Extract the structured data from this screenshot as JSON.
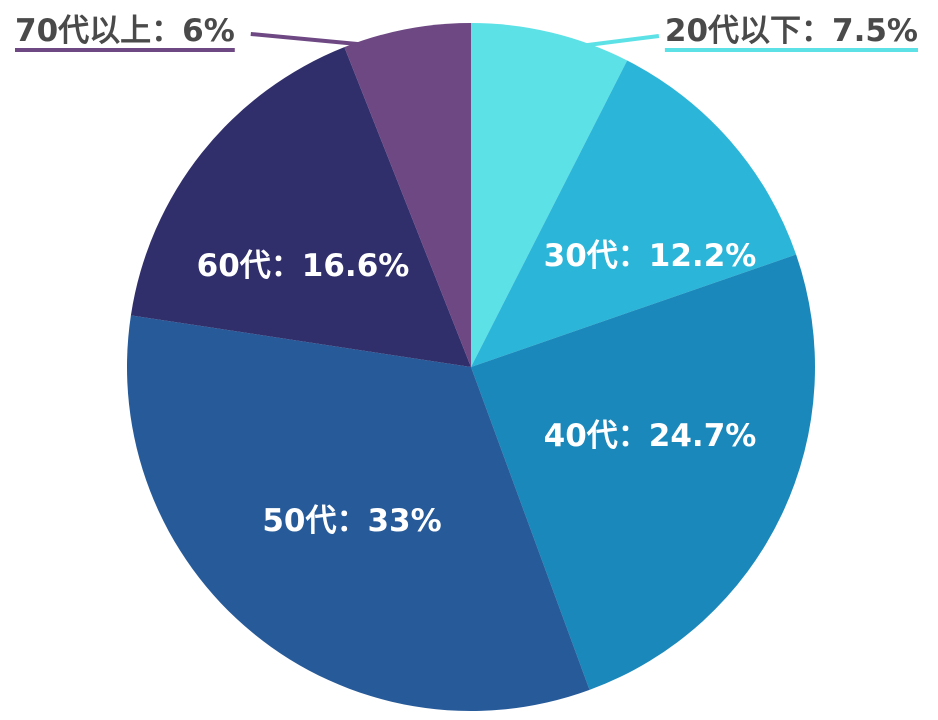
{
  "chart_data": {
    "type": "pie",
    "categories": [
      "20代以下",
      "30代",
      "40代",
      "50代",
      "60代",
      "70代以上"
    ],
    "separator": "：",
    "values": [
      7.5,
      12.2,
      24.7,
      33,
      16.6,
      6
    ],
    "value_labels": [
      "7.5%",
      "12.2%",
      "24.7%",
      "33%",
      "16.6%",
      "6%"
    ],
    "colors": [
      "#5ce1e6",
      "#2bb5d8",
      "#1a88bb",
      "#275a99",
      "#302e6b",
      "#6d4883"
    ]
  }
}
